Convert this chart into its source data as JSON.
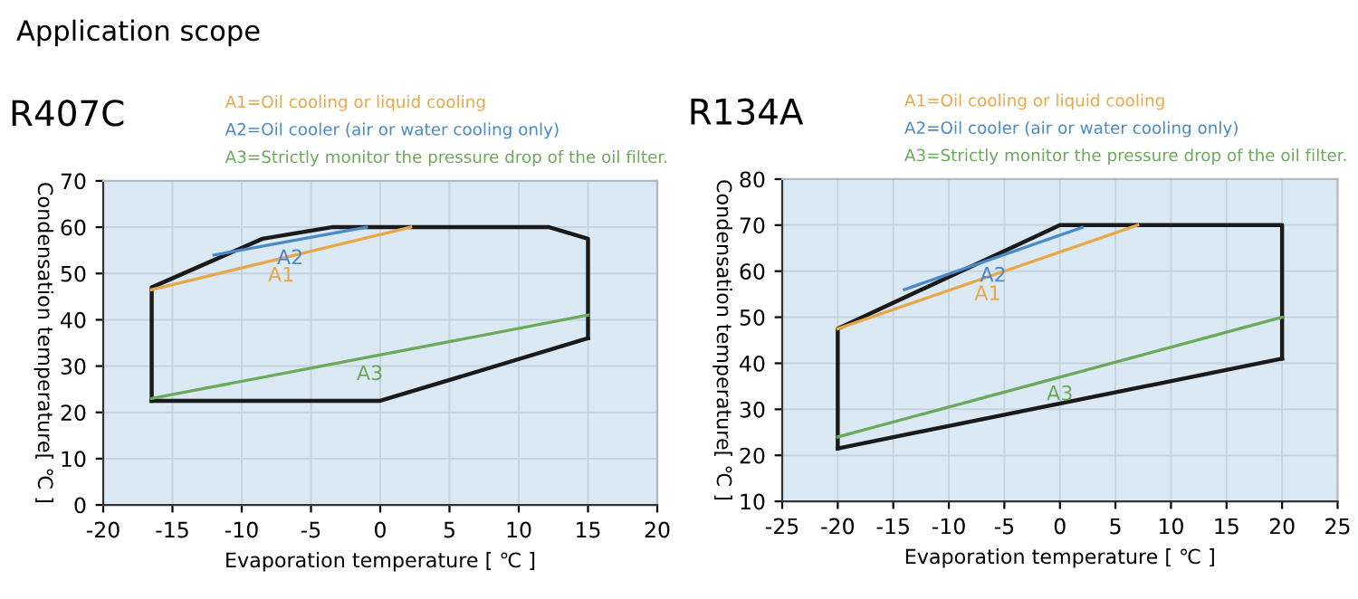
{
  "chart_data": [
    {
      "type": "line",
      "title": "R407C",
      "xlabel": "Evaporation temperature [ ℃ ]",
      "ylabel": "Condensation temperature[ ℃ ]",
      "xlim": [
        -20,
        20
      ],
      "xticks": [
        -20,
        -15,
        -10,
        -5,
        0,
        5,
        10,
        15,
        20
      ],
      "ylim": [
        0,
        70
      ],
      "yticks": [
        0,
        10,
        20,
        30,
        40,
        50,
        60,
        70
      ],
      "grid": true,
      "annotations": [
        "Application scope",
        "A1=Oil cooling or liquid cooling",
        "A2=Oil cooler (air or water cooling only)",
        "A3=Strictly monitor the pressure drop of the oil filter."
      ],
      "series": [
        {
          "color": "#1a1a1a",
          "x": [
            -16.5,
            -16.5,
            -8.5,
            -3.5,
            12.2,
            15,
            15
          ],
          "values": [
            22.5,
            47,
            57.5,
            60,
            60,
            57.5,
            36
          ]
        },
        {
          "color": "#1a1a1a",
          "x": [
            -16.5,
            0,
            15
          ],
          "values": [
            22.5,
            22.5,
            36
          ]
        },
        {
          "name": "A1",
          "color": "#e8a84a",
          "x": [
            -16.5,
            2.2
          ],
          "values": [
            46.5,
            60
          ]
        },
        {
          "name": "A2",
          "color": "#4a8ac8",
          "x": [
            -12,
            -1
          ],
          "values": [
            54,
            60
          ]
        },
        {
          "name": "A3",
          "color": "#6aaa5a",
          "x": [
            -16.5,
            15
          ],
          "values": [
            23,
            41
          ]
        }
      ]
    },
    {
      "type": "line",
      "title": "R134A",
      "xlabel": "Evaporation temperature [ ℃ ]",
      "ylabel": "Condensation temperature[ ℃ ]",
      "xlim": [
        -25,
        25
      ],
      "xticks": [
        -25,
        -20,
        -15,
        -10,
        -5,
        0,
        5,
        10,
        15,
        20,
        25
      ],
      "ylim": [
        10,
        80
      ],
      "yticks": [
        10,
        20,
        30,
        40,
        50,
        60,
        70,
        80
      ],
      "grid": true,
      "annotations": [
        "A1=Oil cooling or liquid cooling",
        "A2=Oil cooler (air or water cooling only)",
        "A3=Strictly monitor the pressure drop of the oil filter."
      ],
      "series": [
        {
          "color": "#1a1a1a",
          "x": [
            -20,
            -20,
            0,
            20,
            20
          ],
          "values": [
            21.5,
            47.5,
            70,
            70,
            41
          ]
        },
        {
          "color": "#1a1a1a",
          "x": [
            -20,
            20
          ],
          "values": [
            21.5,
            41
          ]
        },
        {
          "name": "A1",
          "color": "#e8a84a",
          "x": [
            -20,
            7
          ],
          "values": [
            47.5,
            70
          ]
        },
        {
          "name": "A2",
          "color": "#4a8ac8",
          "x": [
            -14,
            2
          ],
          "values": [
            56,
            69.5
          ]
        },
        {
          "name": "A3",
          "color": "#6aaa5a",
          "x": [
            -20,
            20
          ],
          "values": [
            24,
            50
          ]
        }
      ]
    }
  ]
}
